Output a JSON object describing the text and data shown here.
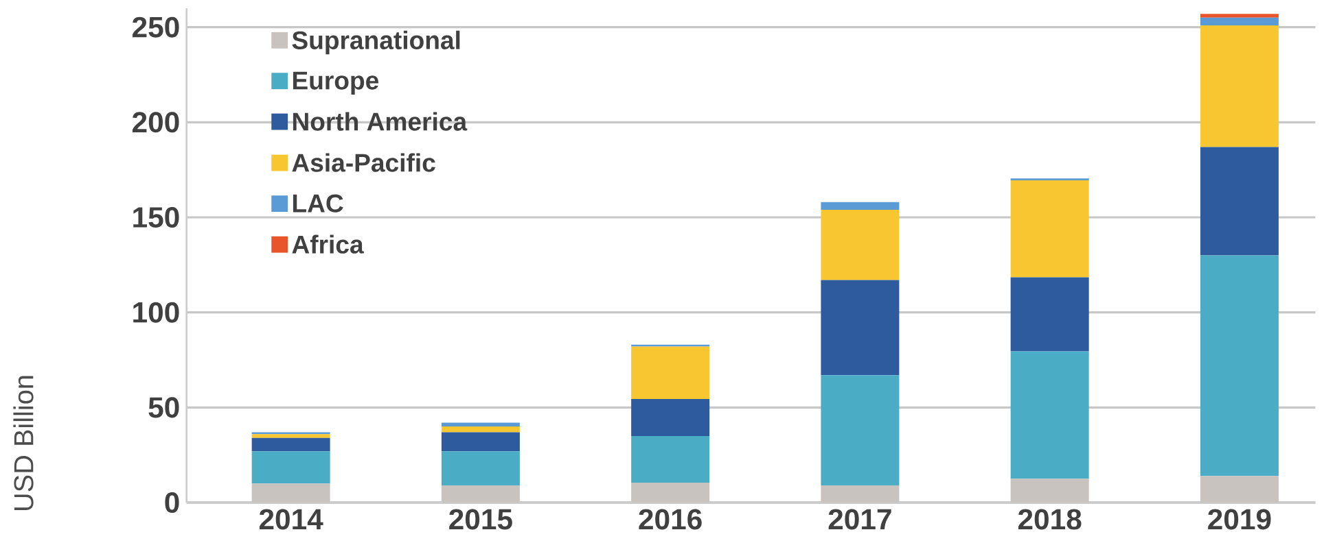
{
  "chart_data": {
    "type": "bar",
    "stacked": true,
    "ylabel": "USD Billion",
    "categories": [
      "2014",
      "2015",
      "2016",
      "2017",
      "2018",
      "2019"
    ],
    "series": [
      {
        "name": "Supranational",
        "color": "#c9c3c0",
        "values": [
          10,
          9,
          10.5,
          9,
          12.5,
          14
        ]
      },
      {
        "name": "Europe",
        "color": "#4bacc6",
        "values": [
          17,
          18,
          24.5,
          58,
          67,
          116
        ]
      },
      {
        "name": "North America",
        "color": "#2e5a9e",
        "values": [
          7,
          10,
          19.5,
          50,
          39,
          57
        ]
      },
      {
        "name": "Asia-Pacific",
        "color": "#f8c630",
        "values": [
          2,
          3,
          27.5,
          37,
          51,
          64
        ]
      },
      {
        "name": "LAC",
        "color": "#5b9bd5",
        "values": [
          1,
          2,
          1,
          4,
          1,
          4
        ]
      },
      {
        "name": "Africa",
        "color": "#e8552a",
        "values": [
          0,
          0,
          0,
          0,
          0,
          2
        ]
      }
    ],
    "ylim": [
      0,
      260
    ],
    "yticks": [
      0,
      50,
      100,
      150,
      200,
      250
    ],
    "grid": "y",
    "legend": "top left"
  }
}
